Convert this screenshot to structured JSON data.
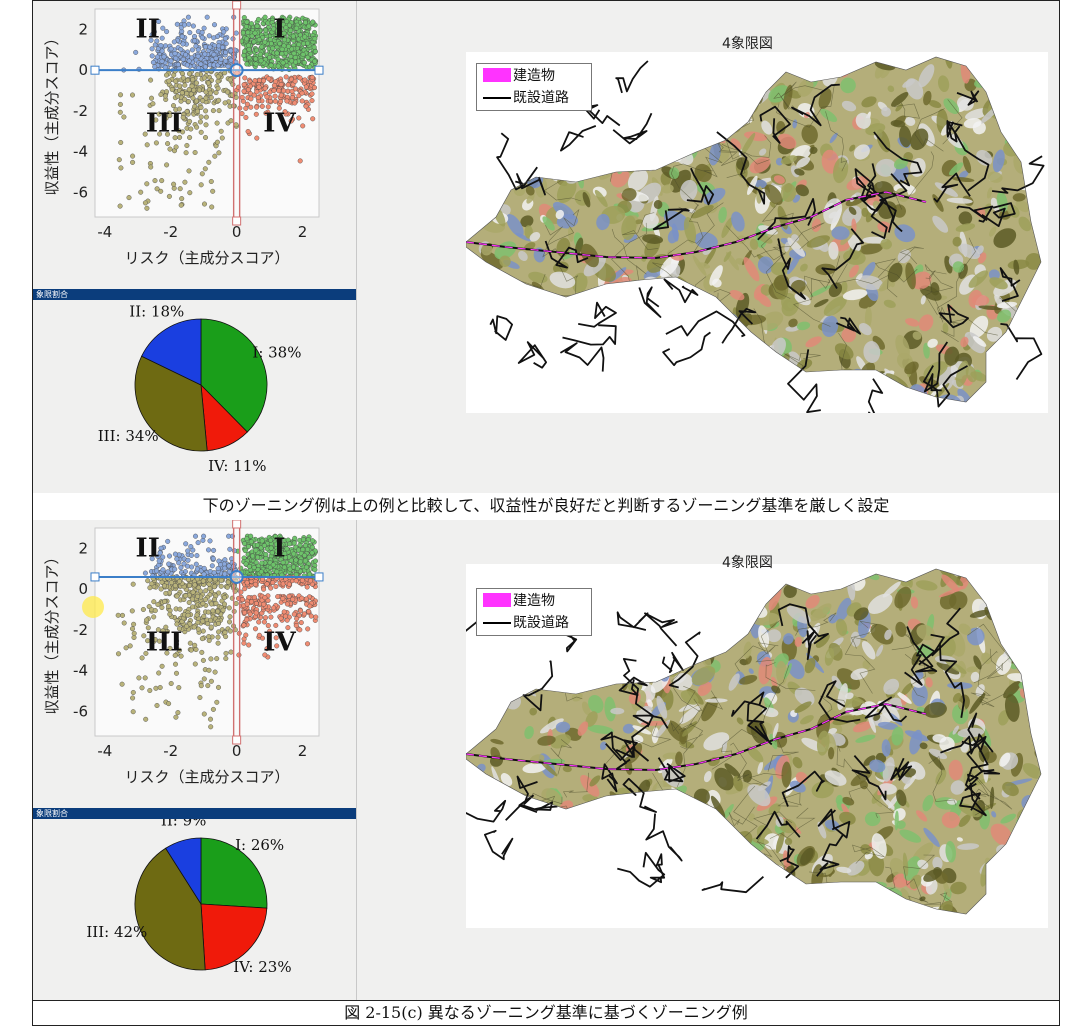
{
  "captions": {
    "middle": "下のゾーニング例は上の例と比較して、収益性が良好だと判断するゾーニング基準を厳しく設定",
    "figure": "図 2-15(c) 異なるゾーニング基準に基づくゾーニング例"
  },
  "colors": {
    "q1": "#1a9e1a",
    "q2": "#1a3fe0",
    "q3": "#6e6a12",
    "q4": "#f01a0a",
    "q1_points": "#6dc36a",
    "q2_points": "#8aa8dc",
    "q3_points": "#b8b27a",
    "q4_points": "#f08c72",
    "boundary_line": "#d07070",
    "marker": "#3b7ec8",
    "building": "#ff33ff",
    "header_bar": "#0b3d7c"
  },
  "panels": [
    {
      "id": "top",
      "pie_header": "象限割合",
      "map_title": "4象限図",
      "legend": {
        "building": "建造物",
        "road": "既設道路"
      },
      "scatter_labels": {
        "q1": "I",
        "q2": "II",
        "q3": "III",
        "q4": "IV"
      }
    },
    {
      "id": "bottom",
      "pie_header": "象限割合",
      "map_title": "4象限図",
      "legend": {
        "building": "建造物",
        "road": "既設道路"
      },
      "scatter_labels": {
        "q1": "I",
        "q2": "II",
        "q3": "III",
        "q4": "IV"
      }
    }
  ],
  "chart_data": [
    {
      "type": "scatter",
      "panel": "top",
      "xlabel": "リスク（主成分スコア）",
      "ylabel": "収益性（主成分スコア）",
      "xlim": [
        -4.3,
        2.5
      ],
      "ylim": [
        -7.2,
        3.0
      ],
      "xticks": [
        -4,
        -2,
        0,
        2
      ],
      "yticks": [
        2,
        0,
        -2,
        -4,
        -6
      ],
      "xtick_labels": [
        "-4",
        "-2",
        "0",
        "2"
      ],
      "ytick_labels": [
        "2",
        "0",
        "-2",
        "-4",
        "-6"
      ],
      "boundary": {
        "x": 0,
        "y": 0
      },
      "quadrants": [
        "I",
        "II",
        "III",
        "IV"
      ]
    },
    {
      "type": "pie",
      "panel": "top",
      "slices": [
        {
          "label": "I",
          "text": "I: 38%",
          "value": 38
        },
        {
          "label": "IV",
          "text": "IV: 11%",
          "value": 11
        },
        {
          "label": "III",
          "text": "III: 34%",
          "value": 34
        },
        {
          "label": "II",
          "text": "II: 18%",
          "value": 18
        }
      ]
    },
    {
      "type": "scatter",
      "panel": "bottom",
      "xlabel": "リスク（主成分スコア）",
      "ylabel": "収益性（主成分スコア）",
      "xlim": [
        -4.3,
        2.5
      ],
      "ylim": [
        -7.2,
        3.0
      ],
      "xticks": [
        -4,
        -2,
        0,
        2
      ],
      "yticks": [
        2,
        0,
        -2,
        -4,
        -6
      ],
      "xtick_labels": [
        "-4",
        "-2",
        "0",
        "2"
      ],
      "ytick_labels": [
        "2",
        "0",
        "-2",
        "-4",
        "-6"
      ],
      "boundary": {
        "x": 0,
        "y": 0.6
      },
      "quadrants": [
        "I",
        "II",
        "III",
        "IV"
      ]
    },
    {
      "type": "pie",
      "panel": "bottom",
      "slices": [
        {
          "label": "I",
          "text": "I: 26%",
          "value": 26
        },
        {
          "label": "IV",
          "text": "IV: 23%",
          "value": 23
        },
        {
          "label": "III",
          "text": "III: 42%",
          "value": 42
        },
        {
          "label": "II",
          "text": "II: 9%",
          "value": 9
        }
      ]
    }
  ]
}
